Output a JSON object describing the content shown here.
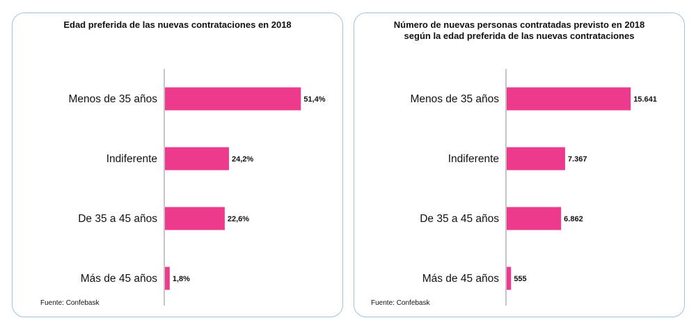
{
  "chart_data": [
    {
      "type": "bar",
      "orientation": "horizontal",
      "title": "Edad preferida de las nuevas contrataciones en 2018",
      "categories": [
        "Menos de 35 años",
        "Indiferente",
        "De 35 a 45 años",
        "Más de 45 años"
      ],
      "values": [
        51.4,
        24.2,
        22.6,
        1.8
      ],
      "value_labels": [
        "51,4%",
        "24,2%",
        "22,6%",
        "1,8%"
      ],
      "xlim": [
        0,
        100
      ],
      "grid": false,
      "color": "#ec3b8d",
      "source": "Fuente: Confebask"
    },
    {
      "type": "bar",
      "orientation": "horizontal",
      "title": "Número de nuevas personas contratadas previsto en 2018 según la edad preferida de las nuevas contrataciones",
      "title_lines": [
        "Número de nuevas personas contratadas previsto en 2018",
        "según la edad preferida de las nuevas contrataciones"
      ],
      "categories": [
        "Menos de 35 años",
        "Indiferente",
        "De 35 a 45 años",
        "Más de 45 años"
      ],
      "values": [
        15641,
        7367,
        6862,
        555
      ],
      "value_labels": [
        "15.641",
        "7.367",
        "6.862",
        "555"
      ],
      "xlim": [
        0,
        28000
      ],
      "grid": false,
      "color": "#ec3b8d",
      "source": "Fuente: Confebask"
    }
  ]
}
